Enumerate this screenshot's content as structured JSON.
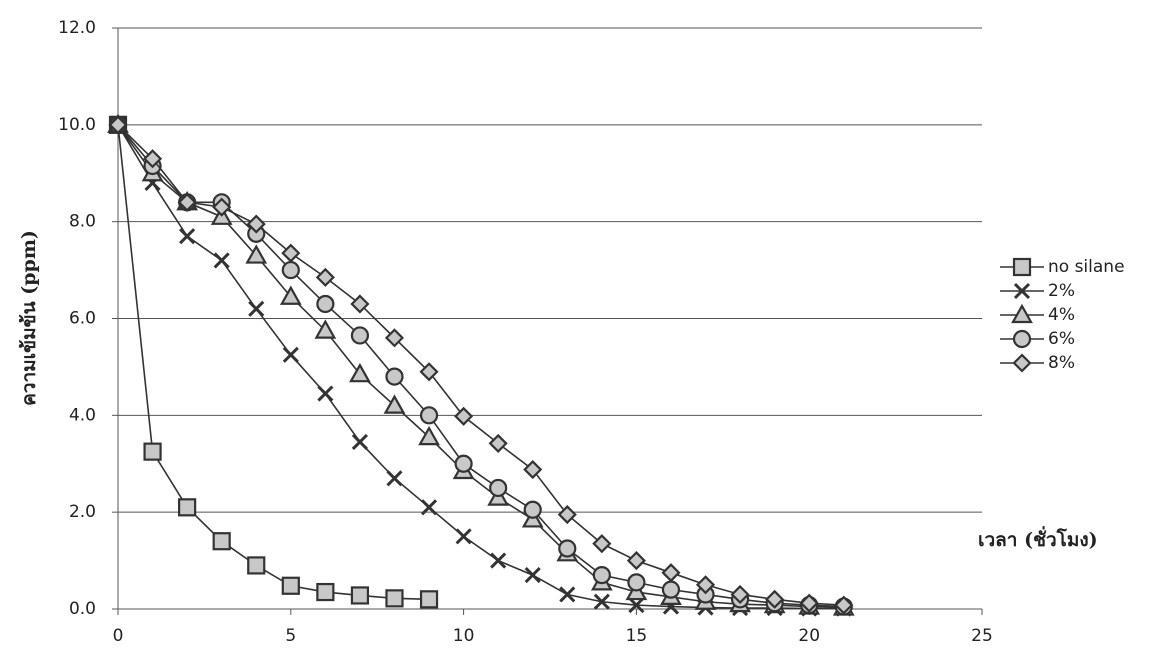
{
  "chart_data": {
    "type": "line",
    "y_label": "ความเข้มข้น (ppm)",
    "annotation": "เวลา (ชั่วโมง)",
    "x": [
      0,
      1,
      2,
      3,
      4,
      5,
      6,
      7,
      8,
      9,
      10,
      11,
      12,
      13,
      14,
      15,
      16,
      17,
      18,
      19,
      20,
      21
    ],
    "series": [
      {
        "name": "no silane",
        "color": "#333333",
        "marker": "square",
        "values": [
          10,
          3.25,
          2.1,
          1.4,
          0.9,
          0.48,
          0.35,
          0.28,
          0.22,
          0.2,
          null,
          null,
          null,
          null,
          null,
          null,
          null,
          null,
          null,
          null,
          null,
          null
        ]
      },
      {
        "name": "2%",
        "color": "#333333",
        "marker": "x",
        "values": [
          10,
          8.8,
          7.7,
          7.2,
          6.2,
          5.25,
          4.45,
          3.45,
          2.7,
          2.1,
          1.5,
          1.0,
          0.7,
          0.3,
          0.15,
          0.08,
          0.05,
          0.03,
          0.02,
          0.02,
          0.01,
          0.01
        ]
      },
      {
        "name": "4%",
        "color": "#333333",
        "marker": "triangle",
        "values": [
          10,
          9.0,
          8.4,
          8.1,
          7.3,
          6.45,
          5.75,
          4.85,
          4.2,
          3.55,
          2.85,
          2.3,
          1.85,
          1.15,
          0.55,
          0.35,
          0.25,
          0.15,
          0.1,
          0.08,
          0.05,
          0.03
        ]
      },
      {
        "name": "6%",
        "color": "#333333",
        "marker": "circle",
        "values": [
          10,
          9.15,
          8.4,
          8.4,
          7.75,
          7.0,
          6.3,
          5.65,
          4.8,
          4.0,
          3.0,
          2.5,
          2.05,
          1.25,
          0.7,
          0.55,
          0.4,
          0.3,
          0.2,
          0.12,
          0.08,
          0.05
        ]
      },
      {
        "name": "8%",
        "color": "#333333",
        "marker": "diamond",
        "values": [
          10,
          9.3,
          8.4,
          8.3,
          7.95,
          7.35,
          6.85,
          6.3,
          5.6,
          4.9,
          3.98,
          3.42,
          2.88,
          1.95,
          1.35,
          1.0,
          0.75,
          0.5,
          0.3,
          0.2,
          0.12,
          0.08
        ]
      }
    ],
    "xlim": [
      0,
      25
    ],
    "xticks": [
      0,
      5,
      10,
      15,
      20,
      25
    ],
    "ylim": [
      0,
      12
    ],
    "yticks": [
      {
        "value": 0,
        "label": "0.0"
      },
      {
        "value": 2,
        "label": "2.0"
      },
      {
        "value": 4,
        "label": "4.0"
      },
      {
        "value": 6,
        "label": "6.0"
      },
      {
        "value": 8,
        "label": "8.0"
      },
      {
        "value": 10,
        "label": "10.0"
      },
      {
        "value": 12,
        "label": "12.0"
      }
    ],
    "grid": true,
    "legend": "right"
  }
}
